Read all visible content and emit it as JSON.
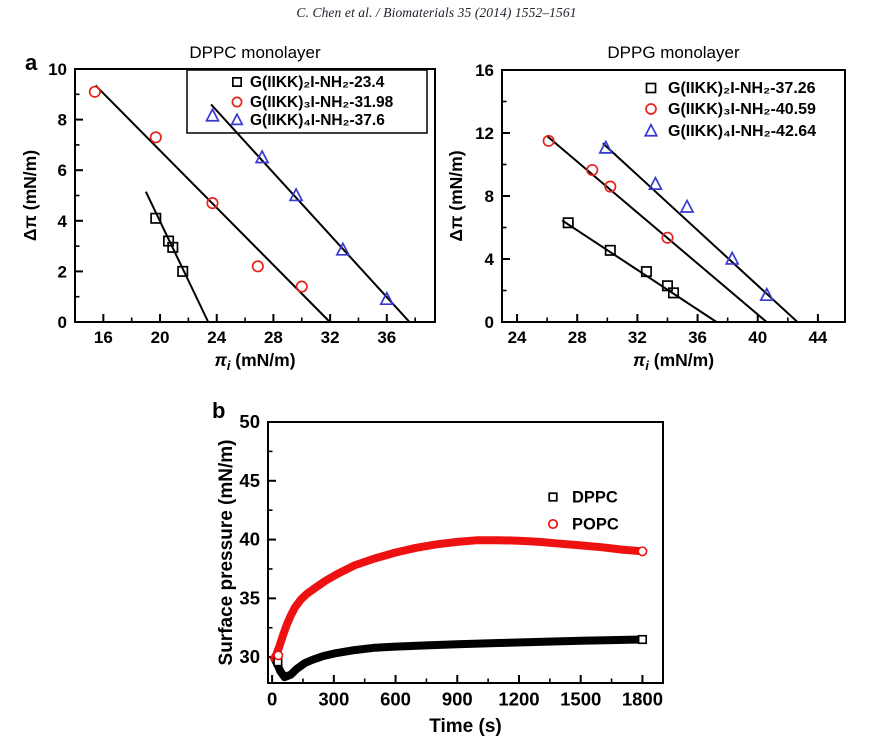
{
  "page": {
    "header": "C. Chen et al. / Biomaterials 35 (2014) 1552–1561",
    "panel_a_label": "a",
    "panel_b_label": "b"
  },
  "colors": {
    "axis": "#000000",
    "black_series": "#000000",
    "red_series": "#e8231d",
    "blue_series": "#3838d2",
    "kinetics_red": "#ee1111"
  },
  "chart_data": [
    {
      "id": "dppc",
      "type": "scatter",
      "title": "DPPC monolayer",
      "xlabel": {
        "symbol": "π",
        "subscript": "i",
        "rest": " (mN/m)"
      },
      "ylabel": "Δπ (mN/m)",
      "xlim": [
        14,
        39.4
      ],
      "ylim": [
        0,
        10
      ],
      "xticks": [
        16,
        20,
        24,
        28,
        32,
        36
      ],
      "yticks": [
        0,
        2,
        4,
        6,
        8,
        10
      ],
      "xminor": [
        18,
        22,
        26,
        30,
        34,
        38
      ],
      "yminor": [
        1,
        3,
        5,
        7,
        9
      ],
      "grid": false,
      "legend_position": "top-right-boxed",
      "series": [
        {
          "name": "G(IIKK)₂I-NH₂-23.4",
          "marker": "square",
          "color": "#000000",
          "points": [
            [
              19.7,
              4.1
            ],
            [
              20.6,
              3.2
            ],
            [
              20.9,
              2.95
            ],
            [
              21.6,
              2.0
            ]
          ],
          "fit_line": [
            [
              19.0,
              5.15
            ],
            [
              23.4,
              0
            ]
          ],
          "x_intercept": 23.4
        },
        {
          "name": "G(IIKK)₃I-NH₂-31.98",
          "marker": "circle",
          "color": "#e8231d",
          "points": [
            [
              15.4,
              9.1
            ],
            [
              19.7,
              7.3
            ],
            [
              23.7,
              4.7
            ],
            [
              26.9,
              2.2
            ],
            [
              30.0,
              1.4
            ]
          ],
          "fit_line": [
            [
              15.45,
              9.35
            ],
            [
              31.98,
              0
            ]
          ],
          "x_intercept": 31.98
        },
        {
          "name": "G(IIKK)₄I-NH₂-37.6",
          "marker": "triangle",
          "color": "#3838d2",
          "points": [
            [
              23.7,
              8.15
            ],
            [
              27.2,
              6.5
            ],
            [
              29.6,
              5.0
            ],
            [
              32.9,
              2.85
            ],
            [
              36.0,
              0.9
            ]
          ],
          "fit_line": [
            [
              23.6,
              8.6
            ],
            [
              37.6,
              0
            ]
          ],
          "x_intercept": 37.6
        }
      ]
    },
    {
      "id": "dppg",
      "type": "scatter",
      "title": "DPPG monolayer",
      "xlabel": {
        "symbol": "π",
        "subscript": "i",
        "rest": " (mN/m)"
      },
      "ylabel": "Δπ (mN/m)",
      "xlim": [
        23,
        45.8
      ],
      "ylim": [
        0,
        16
      ],
      "xticks": [
        24,
        28,
        32,
        36,
        40,
        44
      ],
      "yticks": [
        0,
        4,
        8,
        12,
        16
      ],
      "xminor": [
        26,
        30,
        34,
        38,
        42
      ],
      "yminor": [
        2,
        6,
        10,
        14
      ],
      "grid": false,
      "legend_position": "top-right",
      "series": [
        {
          "name": "G(IIKK)₂I-NH₂-37.26",
          "marker": "square",
          "color": "#000000",
          "points": [
            [
              27.4,
              6.3
            ],
            [
              30.2,
              4.55
            ],
            [
              32.6,
              3.2
            ],
            [
              34.0,
              2.3
            ],
            [
              34.4,
              1.85
            ]
          ],
          "fit_line": [
            [
              27.0,
              6.45
            ],
            [
              37.26,
              0
            ]
          ],
          "x_intercept": 37.26
        },
        {
          "name": "G(IIKK)₃I-NH₂-40.59",
          "marker": "circle",
          "color": "#e8231d",
          "points": [
            [
              26.1,
              11.5
            ],
            [
              29.0,
              9.65
            ],
            [
              30.2,
              8.6
            ],
            [
              34.0,
              5.35
            ]
          ],
          "fit_line": [
            [
              26.0,
              11.8
            ],
            [
              40.59,
              0
            ]
          ],
          "x_intercept": 40.59
        },
        {
          "name": "G(IIKK)₄I-NH₂-42.64",
          "marker": "triangle",
          "color": "#3838d2",
          "points": [
            [
              29.9,
              11.05
            ],
            [
              33.2,
              8.75
            ],
            [
              35.3,
              7.3
            ],
            [
              38.3,
              4.0
            ],
            [
              40.6,
              1.7
            ]
          ],
          "fit_line": [
            [
              29.7,
              11.35
            ],
            [
              42.64,
              0
            ]
          ],
          "x_intercept": 42.64
        }
      ]
    },
    {
      "id": "kinetics",
      "type": "line",
      "title": "",
      "xlabel": "Time (s)",
      "ylabel": "Surface pressure (mN/m)",
      "xlim": [
        -20,
        1900
      ],
      "ylim": [
        27.8,
        50
      ],
      "xticks": [
        0,
        300,
        600,
        900,
        1200,
        1500,
        1800
      ],
      "yticks": [
        30,
        35,
        40,
        45,
        50
      ],
      "xminor": [
        150,
        450,
        750,
        1050,
        1350,
        1650
      ],
      "yminor": [
        32.5,
        37.5,
        42.5,
        47.5
      ],
      "grid": false,
      "legend_position": "right-middle",
      "series": [
        {
          "name": "DPPC",
          "marker": "square",
          "color": "#000000",
          "curve": [
            [
              10,
              29.9
            ],
            [
              25,
              29.4
            ],
            [
              40,
              28.8
            ],
            [
              60,
              28.3
            ],
            [
              90,
              28.5
            ],
            [
              120,
              29.0
            ],
            [
              160,
              29.5
            ],
            [
              200,
              29.8
            ],
            [
              250,
              30.1
            ],
            [
              300,
              30.3
            ],
            [
              400,
              30.6
            ],
            [
              500,
              30.8
            ],
            [
              600,
              30.9
            ],
            [
              750,
              31.0
            ],
            [
              900,
              31.1
            ],
            [
              1100,
              31.2
            ],
            [
              1300,
              31.3
            ],
            [
              1500,
              31.4
            ],
            [
              1800,
              31.5
            ]
          ],
          "markers": [
            [
              28,
              29.6
            ],
            [
              1800,
              31.5
            ]
          ]
        },
        {
          "name": "POPC",
          "marker": "circle",
          "color": "#ee1111",
          "curve": [
            [
              10,
              29.9
            ],
            [
              20,
              30.2
            ],
            [
              35,
              30.9
            ],
            [
              50,
              31.7
            ],
            [
              70,
              32.7
            ],
            [
              90,
              33.5
            ],
            [
              110,
              34.2
            ],
            [
              140,
              34.9
            ],
            [
              170,
              35.4
            ],
            [
              210,
              35.9
            ],
            [
              260,
              36.5
            ],
            [
              320,
              37.1
            ],
            [
              400,
              37.8
            ],
            [
              500,
              38.4
            ],
            [
              600,
              38.9
            ],
            [
              700,
              39.3
            ],
            [
              800,
              39.6
            ],
            [
              900,
              39.8
            ],
            [
              1000,
              39.95
            ],
            [
              1100,
              39.95
            ],
            [
              1200,
              39.9
            ],
            [
              1300,
              39.8
            ],
            [
              1400,
              39.65
            ],
            [
              1500,
              39.5
            ],
            [
              1600,
              39.35
            ],
            [
              1700,
              39.15
            ],
            [
              1800,
              39.0
            ]
          ],
          "markers": [
            [
              30,
              30.15
            ],
            [
              1800,
              39.0
            ]
          ]
        }
      ]
    }
  ]
}
